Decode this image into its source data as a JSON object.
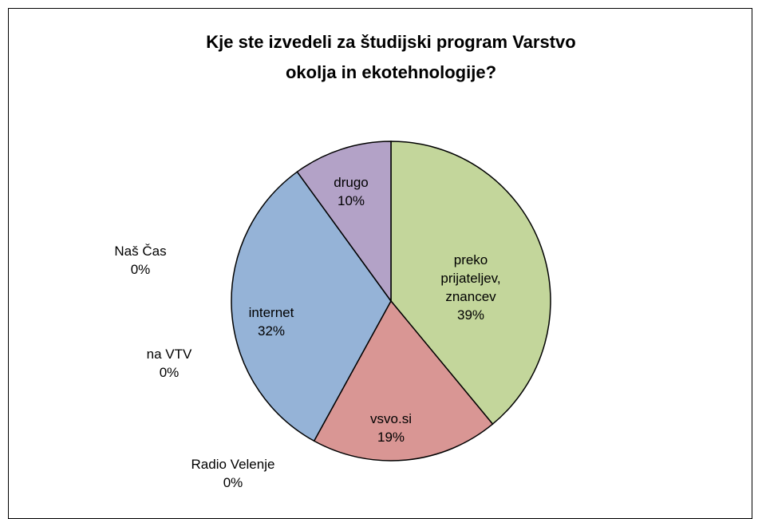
{
  "chart_data": {
    "type": "pie",
    "title": "Kje ste izvedeli za študijski program Varstvo okolja in ekotehnologije?",
    "categories": [
      "preko prijateljev, znancev",
      "vsvo.si",
      "Radio Velenje",
      "na VTV",
      "internet",
      "Naš Čas",
      "drugo"
    ],
    "values": [
      39,
      19,
      0,
      0,
      32,
      0,
      10
    ],
    "value_labels": [
      "39%",
      "19%",
      "0%",
      "0%",
      "32%",
      "0%",
      "10%"
    ],
    "colors": [
      "#c3d69b",
      "#d99694",
      "#a6a6a6",
      "#fabf8f",
      "#95b3d7",
      "#93cddd",
      "#b3a2c7"
    ]
  }
}
